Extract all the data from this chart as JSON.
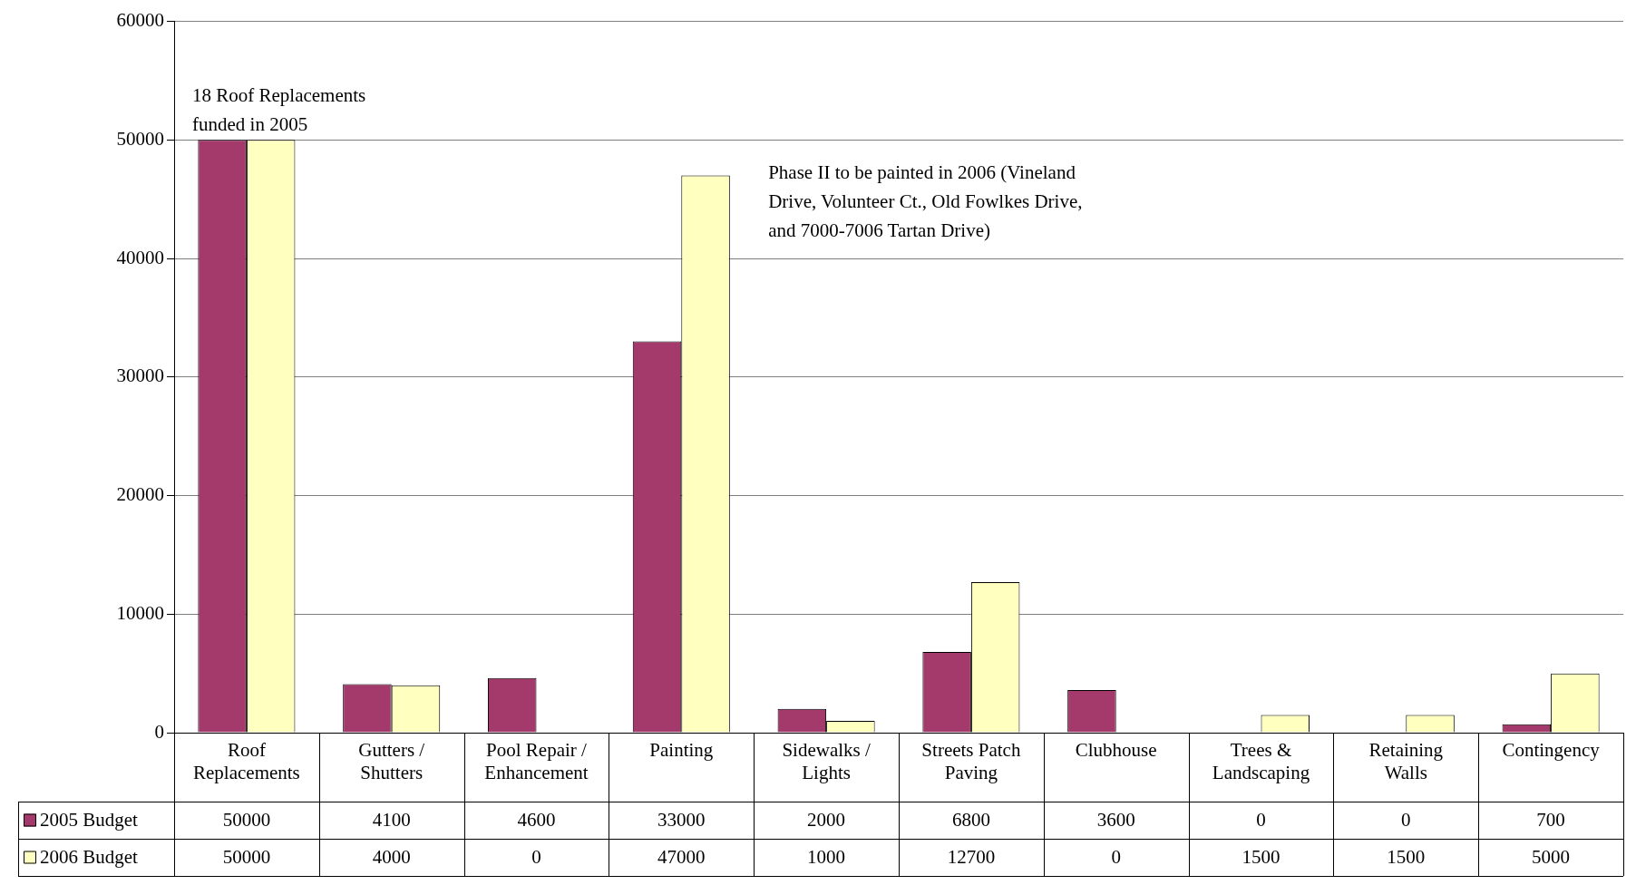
{
  "chart_data": {
    "type": "bar",
    "categories": [
      "Roof Replacements",
      "Gutters / Shutters",
      "Pool Repair / Enhancement",
      "Painting",
      "Sidewalks / Lights",
      "Streets Patch Paving",
      "Clubhouse",
      "Trees & Landscaping",
      "Retaining Walls",
      "Contingency"
    ],
    "series": [
      {
        "name": "2005 Budget",
        "color": "#a33a6b",
        "values": [
          50000,
          4100,
          4600,
          33000,
          2000,
          6800,
          3600,
          0,
          0,
          700
        ]
      },
      {
        "name": "2006 Budget",
        "color": "#ffffc0",
        "values": [
          50000,
          4000,
          0,
          47000,
          1000,
          12700,
          0,
          1500,
          1500,
          5000
        ]
      }
    ],
    "ylim": [
      0,
      60000
    ],
    "yticks": [
      0,
      10000,
      20000,
      30000,
      40000,
      50000,
      60000
    ],
    "grid": "y",
    "legend": "bottom left",
    "data_labels": true,
    "annotations": [
      {
        "text": "18 Roof Replacements funded in 2005",
        "x": "Roof Replacements",
        "y": 50000
      },
      "Phase II to be painted in 2006 (Vineland Drive, Volunteer Ct., Old Fowlkes Drive, and 7000-7006 Tartan Drive)"
    ]
  }
}
